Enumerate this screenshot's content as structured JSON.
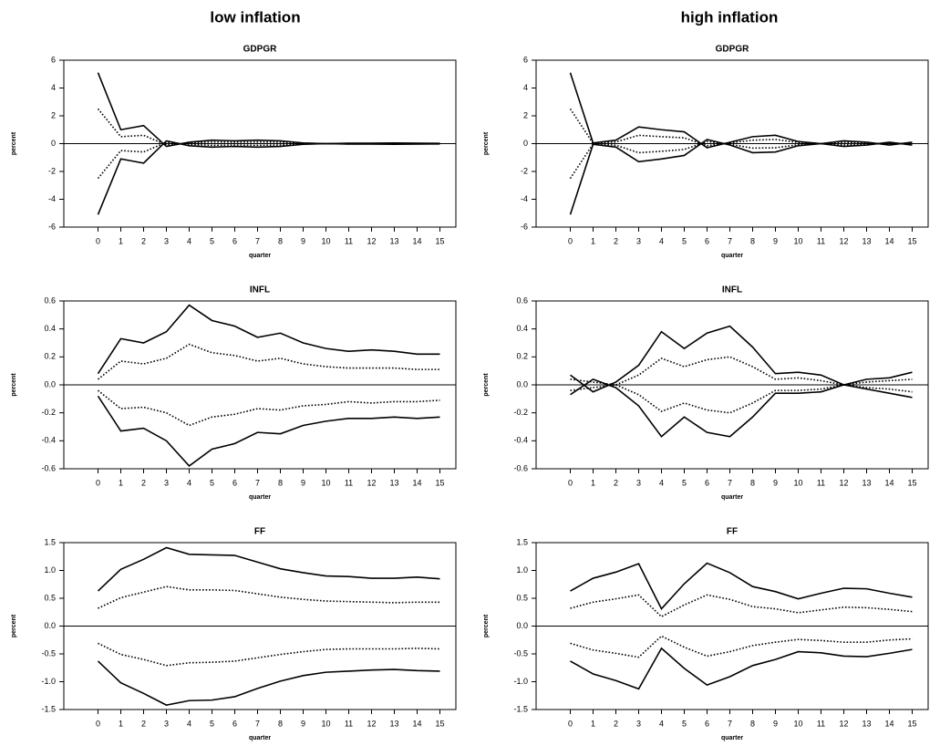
{
  "column_titles": [
    "low inflation",
    "high inflation"
  ],
  "chart_data": [
    {
      "type": "line",
      "title": "GDPGR",
      "xlabel": "quarter",
      "ylabel": "percent",
      "x": [
        0,
        1,
        2,
        3,
        4,
        5,
        6,
        7,
        8,
        9,
        10,
        11,
        12,
        13,
        14,
        15
      ],
      "xlim": [
        -1.5,
        15.7
      ],
      "xticks": [
        0,
        1,
        2,
        3,
        4,
        5,
        6,
        7,
        8,
        9,
        10,
        11,
        12,
        13,
        14,
        15
      ],
      "ylim": [
        -6,
        6
      ],
      "yticks": [
        -6,
        -4,
        -2,
        0,
        2,
        4,
        6
      ],
      "series": [
        {
          "color": "#000000",
          "dash": "solid",
          "values": [
            5.1,
            1.0,
            1.3,
            -0.2,
            0.1,
            0.25,
            0.2,
            0.25,
            0.2,
            0.05,
            0,
            0.03,
            0.03,
            0.05,
            0.03,
            0.02
          ]
        },
        {
          "color": "#000000",
          "dash": "dotted",
          "values": [
            2.5,
            0.5,
            0.6,
            -0.1,
            0.05,
            0.12,
            0.1,
            0.12,
            0.1,
            0.03,
            0,
            0.02,
            0.02,
            0.02,
            0.02,
            0.01
          ]
        },
        {
          "color": "#000000",
          "dash": "dotted",
          "values": [
            -2.5,
            -0.5,
            -0.6,
            0.1,
            -0.05,
            -0.12,
            -0.1,
            -0.12,
            -0.1,
            -0.03,
            0,
            -0.02,
            -0.02,
            -0.02,
            -0.02,
            -0.01
          ]
        },
        {
          "color": "#000000",
          "dash": "solid",
          "values": [
            -5.1,
            -1.1,
            -1.4,
            0.2,
            -0.15,
            -0.25,
            -0.2,
            -0.25,
            -0.2,
            -0.05,
            0,
            -0.03,
            -0.03,
            -0.05,
            -0.03,
            -0.02
          ]
        }
      ]
    },
    {
      "type": "line",
      "title": "GDPGR",
      "xlabel": "quarter",
      "ylabel": "percent",
      "x": [
        0,
        1,
        2,
        3,
        4,
        5,
        6,
        7,
        8,
        9,
        10,
        11,
        12,
        13,
        14,
        15
      ],
      "xlim": [
        -1.5,
        15.7
      ],
      "xticks": [
        0,
        1,
        2,
        3,
        4,
        5,
        6,
        7,
        8,
        9,
        10,
        11,
        12,
        13,
        14,
        15
      ],
      "ylim": [
        -6,
        6
      ],
      "yticks": [
        -6,
        -4,
        -2,
        0,
        2,
        4,
        6
      ],
      "series": [
        {
          "color": "#000000",
          "dash": "solid",
          "values": [
            5.1,
            0.05,
            0.25,
            1.2,
            1.0,
            0.85,
            -0.3,
            0.1,
            0.5,
            0.6,
            0.15,
            0,
            0.2,
            0.1,
            -0.1,
            0.1
          ]
        },
        {
          "color": "#000000",
          "dash": "dotted",
          "values": [
            2.5,
            0.02,
            0.12,
            0.6,
            0.5,
            0.42,
            -0.15,
            0.05,
            0.25,
            0.3,
            0.08,
            0,
            0.1,
            0.05,
            -0.05,
            0.05
          ]
        },
        {
          "color": "#000000",
          "dash": "dotted",
          "values": [
            -2.5,
            -0.02,
            -0.12,
            -0.65,
            -0.55,
            -0.42,
            0.15,
            -0.05,
            -0.32,
            -0.3,
            -0.08,
            0,
            -0.1,
            -0.05,
            0.05,
            -0.05
          ]
        },
        {
          "color": "#000000",
          "dash": "solid",
          "values": [
            -5.1,
            -0.05,
            -0.25,
            -1.3,
            -1.1,
            -0.85,
            0.3,
            -0.1,
            -0.65,
            -0.6,
            -0.15,
            0,
            -0.2,
            -0.1,
            0.1,
            -0.1
          ]
        }
      ]
    },
    {
      "type": "line",
      "title": "INFL",
      "xlabel": "quarter",
      "ylabel": "percent",
      "x": [
        0,
        1,
        2,
        3,
        4,
        5,
        6,
        7,
        8,
        9,
        10,
        11,
        12,
        13,
        14,
        15
      ],
      "xlim": [
        -1.5,
        15.7
      ],
      "xticks": [
        0,
        1,
        2,
        3,
        4,
        5,
        6,
        7,
        8,
        9,
        10,
        11,
        12,
        13,
        14,
        15
      ],
      "ylim": [
        -0.6,
        0.6
      ],
      "yticks": [
        -0.6,
        -0.4,
        -0.2,
        {
          "value": 0,
          "label": "0.0"
        },
        0.2,
        0.4,
        0.6
      ],
      "series": [
        {
          "color": "#000000",
          "dash": "solid",
          "values": [
            0.08,
            0.33,
            0.3,
            0.38,
            0.57,
            0.46,
            0.42,
            0.34,
            0.37,
            0.3,
            0.26,
            0.24,
            0.25,
            0.24,
            0.22,
            0.22
          ]
        },
        {
          "color": "#000000",
          "dash": "dotted",
          "values": [
            0.04,
            0.17,
            0.15,
            0.19,
            0.29,
            0.23,
            0.21,
            0.17,
            0.19,
            0.15,
            0.13,
            0.12,
            0.12,
            0.12,
            0.11,
            0.11
          ]
        },
        {
          "color": "#000000",
          "dash": "dotted",
          "values": [
            -0.04,
            -0.17,
            -0.16,
            -0.2,
            -0.29,
            -0.23,
            -0.21,
            -0.17,
            -0.18,
            -0.15,
            -0.14,
            -0.12,
            -0.13,
            -0.12,
            -0.12,
            -0.11
          ]
        },
        {
          "color": "#000000",
          "dash": "solid",
          "values": [
            -0.08,
            -0.33,
            -0.31,
            -0.4,
            -0.58,
            -0.46,
            -0.42,
            -0.34,
            -0.35,
            -0.29,
            -0.26,
            -0.24,
            -0.24,
            -0.23,
            -0.24,
            -0.23
          ]
        }
      ]
    },
    {
      "type": "line",
      "title": "INFL",
      "xlabel": "quarter",
      "ylabel": "percent",
      "x": [
        0,
        1,
        2,
        3,
        4,
        5,
        6,
        7,
        8,
        9,
        10,
        11,
        12,
        13,
        14,
        15
      ],
      "xlim": [
        -1.5,
        15.7
      ],
      "xticks": [
        0,
        1,
        2,
        3,
        4,
        5,
        6,
        7,
        8,
        9,
        10,
        11,
        12,
        13,
        14,
        15
      ],
      "ylim": [
        -0.6,
        0.6
      ],
      "yticks": [
        -0.6,
        -0.4,
        -0.2,
        {
          "value": 0,
          "label": "0.0"
        },
        0.2,
        0.4,
        0.6
      ],
      "series": [
        {
          "color": "#000000",
          "dash": "solid",
          "values": [
            0.07,
            -0.05,
            0.02,
            0.14,
            0.38,
            0.26,
            0.37,
            0.42,
            0.27,
            0.08,
            0.09,
            0.07,
            0.0,
            0.04,
            0.05,
            0.09
          ]
        },
        {
          "color": "#000000",
          "dash": "dotted",
          "values": [
            0.04,
            0.02,
            0.0,
            0.07,
            0.19,
            0.13,
            0.18,
            0.2,
            0.13,
            0.04,
            0.05,
            0.03,
            0.0,
            0.02,
            0.03,
            0.04
          ]
        },
        {
          "color": "#000000",
          "dash": "dotted",
          "values": [
            -0.04,
            -0.02,
            0.0,
            -0.07,
            -0.19,
            -0.13,
            -0.18,
            -0.2,
            -0.13,
            -0.04,
            -0.04,
            -0.03,
            0.0,
            -0.02,
            -0.03,
            -0.05
          ]
        },
        {
          "color": "#000000",
          "dash": "solid",
          "values": [
            -0.07,
            0.04,
            -0.02,
            -0.15,
            -0.37,
            -0.23,
            -0.34,
            -0.37,
            -0.23,
            -0.06,
            -0.06,
            -0.05,
            0.0,
            -0.03,
            -0.06,
            -0.09
          ]
        }
      ]
    },
    {
      "type": "line",
      "title": "FF",
      "xlabel": "quarter",
      "ylabel": "percent",
      "x": [
        0,
        1,
        2,
        3,
        4,
        5,
        6,
        7,
        8,
        9,
        10,
        11,
        12,
        13,
        14,
        15
      ],
      "xlim": [
        -1.5,
        15.7
      ],
      "xticks": [
        0,
        1,
        2,
        3,
        4,
        5,
        6,
        7,
        8,
        9,
        10,
        11,
        12,
        13,
        14,
        15
      ],
      "ylim": [
        -1.5,
        1.5
      ],
      "yticks": [
        -1.5,
        {
          "value": -1,
          "label": "-1.0"
        },
        -0.5,
        {
          "value": 0,
          "label": "0.0"
        },
        0.5,
        {
          "value": 1,
          "label": "1.0"
        },
        1.5
      ],
      "series": [
        {
          "color": "#000000",
          "dash": "solid",
          "values": [
            0.63,
            1.02,
            1.2,
            1.41,
            1.29,
            1.28,
            1.27,
            1.15,
            1.03,
            0.96,
            0.9,
            0.89,
            0.86,
            0.86,
            0.88,
            0.85
          ]
        },
        {
          "color": "#000000",
          "dash": "dotted",
          "values": [
            0.32,
            0.51,
            0.61,
            0.71,
            0.65,
            0.65,
            0.64,
            0.58,
            0.52,
            0.48,
            0.45,
            0.44,
            0.43,
            0.42,
            0.43,
            0.43
          ]
        },
        {
          "color": "#000000",
          "dash": "dotted",
          "values": [
            -0.31,
            -0.51,
            -0.6,
            -0.71,
            -0.66,
            -0.65,
            -0.63,
            -0.57,
            -0.51,
            -0.46,
            -0.42,
            -0.41,
            -0.41,
            -0.41,
            -0.4,
            -0.41
          ]
        },
        {
          "color": "#000000",
          "dash": "solid",
          "values": [
            -0.63,
            -1.02,
            -1.21,
            -1.42,
            -1.34,
            -1.33,
            -1.27,
            -1.12,
            -0.99,
            -0.89,
            -0.83,
            -0.81,
            -0.79,
            -0.78,
            -0.8,
            -0.81
          ]
        }
      ]
    },
    {
      "type": "line",
      "title": "FF",
      "xlabel": "quarter",
      "ylabel": "percent",
      "x": [
        0,
        1,
        2,
        3,
        4,
        5,
        6,
        7,
        8,
        9,
        10,
        11,
        12,
        13,
        14,
        15
      ],
      "xlim": [
        -1.5,
        15.7
      ],
      "xticks": [
        0,
        1,
        2,
        3,
        4,
        5,
        6,
        7,
        8,
        9,
        10,
        11,
        12,
        13,
        14,
        15
      ],
      "ylim": [
        -1.5,
        1.5
      ],
      "yticks": [
        -1.5,
        {
          "value": -1,
          "label": "-1.0"
        },
        -0.5,
        {
          "value": 0,
          "label": "0.0"
        },
        0.5,
        {
          "value": 1,
          "label": "1.0"
        },
        1.5
      ],
      "series": [
        {
          "color": "#000000",
          "dash": "solid",
          "values": [
            0.63,
            0.86,
            0.97,
            1.12,
            0.31,
            0.76,
            1.13,
            0.96,
            0.71,
            0.62,
            0.49,
            0.59,
            0.68,
            0.67,
            0.59,
            0.52
          ]
        },
        {
          "color": "#000000",
          "dash": "dotted",
          "values": [
            0.32,
            0.43,
            0.49,
            0.56,
            0.17,
            0.38,
            0.56,
            0.48,
            0.35,
            0.31,
            0.24,
            0.29,
            0.34,
            0.33,
            0.3,
            0.26
          ]
        },
        {
          "color": "#000000",
          "dash": "dotted",
          "values": [
            -0.31,
            -0.43,
            -0.49,
            -0.56,
            -0.18,
            -0.38,
            -0.54,
            -0.46,
            -0.35,
            -0.29,
            -0.24,
            -0.26,
            -0.29,
            -0.29,
            -0.25,
            -0.23
          ]
        },
        {
          "color": "#000000",
          "dash": "solid",
          "values": [
            -0.63,
            -0.86,
            -0.98,
            -1.13,
            -0.4,
            -0.76,
            -1.06,
            -0.91,
            -0.71,
            -0.6,
            -0.46,
            -0.48,
            -0.54,
            -0.55,
            -0.49,
            -0.42
          ]
        }
      ]
    }
  ]
}
